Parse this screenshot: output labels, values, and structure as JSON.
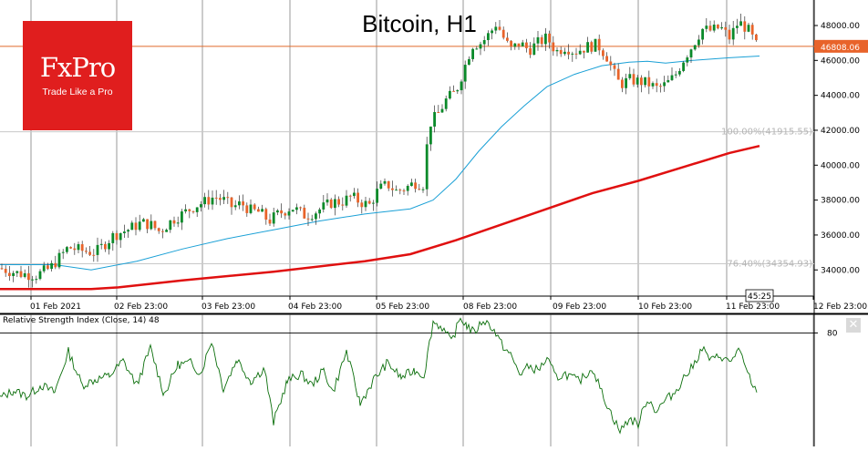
{
  "logo": {
    "brand": "FxPro",
    "tagline": "Trade Like a Pro"
  },
  "chart_data": [
    {
      "type": "candlestick",
      "title": "Bitcoin, H1",
      "current_price_label": "46808.06",
      "time_remaining_label": "45:25",
      "y_ticks": [
        "48000.00",
        "46000.00",
        "44000.00",
        "42000.00",
        "40000.00",
        "38000.00",
        "36000.00",
        "34000.00"
      ],
      "ylim": [
        32500,
        49200
      ],
      "x_labels": [
        "01 Feb 2021",
        "02 Feb 23:00",
        "03 Feb 23:00",
        "04 Feb 23:00",
        "05 Feb 23:00",
        "08 Feb 23:00",
        "09 Feb 23:00",
        "10 Feb 23:00",
        "11 Feb 23:00",
        "12 Feb 23:00"
      ],
      "fib_levels": [
        {
          "label": "100.00%(41915.55)",
          "price": 41915.55
        },
        {
          "label": "76.40%(34354.93)",
          "price": 34354.93
        }
      ],
      "current_price": 46808.06,
      "close_path": [
        [
          0,
          34100
        ],
        [
          20,
          33800
        ],
        [
          40,
          33700
        ],
        [
          55,
          34100
        ],
        [
          65,
          34700
        ],
        [
          75,
          35300
        ],
        [
          90,
          35100
        ],
        [
          105,
          35000
        ],
        [
          115,
          35500
        ],
        [
          125,
          36000
        ],
        [
          140,
          36300
        ],
        [
          155,
          36700
        ],
        [
          165,
          36600
        ],
        [
          175,
          36200
        ],
        [
          190,
          36900
        ],
        [
          200,
          37200
        ],
        [
          215,
          37700
        ],
        [
          225,
          37900
        ],
        [
          235,
          38200
        ],
        [
          245,
          38000
        ],
        [
          255,
          37600
        ],
        [
          265,
          37800
        ],
        [
          275,
          37400
        ],
        [
          285,
          37300
        ],
        [
          295,
          36800
        ],
        [
          305,
          37200
        ],
        [
          320,
          37600
        ],
        [
          335,
          37100
        ],
        [
          345,
          37300
        ],
        [
          355,
          37600
        ],
        [
          365,
          37900
        ],
        [
          375,
          37900
        ],
        [
          385,
          38200
        ],
        [
          395,
          37900
        ],
        [
          405,
          37700
        ],
        [
          415,
          38600
        ],
        [
          425,
          38900
        ],
        [
          435,
          38500
        ],
        [
          445,
          38700
        ],
        [
          455,
          39000
        ],
        [
          465,
          38900
        ],
        [
          470,
          42300
        ],
        [
          480,
          42900
        ],
        [
          490,
          43800
        ],
        [
          500,
          44200
        ],
        [
          510,
          45700
        ],
        [
          518,
          46900
        ],
        [
          528,
          47000
        ],
        [
          538,
          47600
        ],
        [
          545,
          48200
        ],
        [
          550,
          47500
        ],
        [
          560,
          46600
        ],
        [
          570,
          47000
        ],
        [
          580,
          46600
        ],
        [
          590,
          47000
        ],
        [
          600,
          47300
        ],
        [
          610,
          46500
        ],
        [
          620,
          46800
        ],
        [
          630,
          46500
        ],
        [
          645,
          46800
        ],
        [
          655,
          46900
        ],
        [
          665,
          46300
        ],
        [
          672,
          45400
        ],
        [
          680,
          44600
        ],
        [
          690,
          44900
        ],
        [
          700,
          44800
        ],
        [
          710,
          44700
        ],
        [
          720,
          44400
        ],
        [
          730,
          44600
        ],
        [
          740,
          45100
        ],
        [
          750,
          46100
        ],
        [
          760,
          46900
        ],
        [
          770,
          47800
        ],
        [
          780,
          47700
        ],
        [
          790,
          47900
        ],
        [
          800,
          47300
        ],
        [
          810,
          48200
        ],
        [
          820,
          47800
        ],
        [
          830,
          46808
        ]
      ],
      "series": [
        {
          "name": "MA fast",
          "color": "#1aa0d6",
          "points": [
            [
              0,
              34300
            ],
            [
              60,
              34300
            ],
            [
              100,
              34000
            ],
            [
              150,
              34500
            ],
            [
              200,
              35200
            ],
            [
              250,
              35800
            ],
            [
              300,
              36300
            ],
            [
              350,
              36800
            ],
            [
              400,
              37200
            ],
            [
              450,
              37500
            ],
            [
              475,
              38000
            ],
            [
              500,
              39200
            ],
            [
              525,
              40800
            ],
            [
              550,
              42200
            ],
            [
              575,
              43400
            ],
            [
              600,
              44500
            ],
            [
              630,
              45200
            ],
            [
              660,
              45700
            ],
            [
              690,
              45900
            ],
            [
              710,
              45950
            ],
            [
              730,
              45850
            ],
            [
              760,
              46000
            ],
            [
              800,
              46150
            ],
            [
              833,
              46250
            ]
          ]
        },
        {
          "name": "MA slow",
          "color": "#e01010",
          "points": [
            [
              0,
              32900
            ],
            [
              100,
              32900
            ],
            [
              130,
              33000
            ],
            [
              200,
              33400
            ],
            [
              300,
              33900
            ],
            [
              400,
              34500
            ],
            [
              450,
              34900
            ],
            [
              500,
              35700
            ],
            [
              550,
              36600
            ],
            [
              600,
              37500
            ],
            [
              650,
              38400
            ],
            [
              700,
              39100
            ],
            [
              750,
              39900
            ],
            [
              800,
              40700
            ],
            [
              833,
              41100
            ]
          ]
        }
      ]
    },
    {
      "type": "line",
      "title": "Relative Strength Index (Close, 14) 48",
      "level_label": "80",
      "level": 80,
      "ylim": [
        20,
        90
      ],
      "series": [
        {
          "name": "RSI",
          "color": "#0a6e0a",
          "points": [
            [
              0,
              45
            ],
            [
              15,
              49
            ],
            [
              30,
              46
            ],
            [
              45,
              52
            ],
            [
              60,
              48
            ],
            [
              75,
              70
            ],
            [
              90,
              52
            ],
            [
              105,
              55
            ],
            [
              120,
              57
            ],
            [
              135,
              65
            ],
            [
              150,
              52
            ],
            [
              165,
              72
            ],
            [
              180,
              47
            ],
            [
              195,
              63
            ],
            [
              210,
              64
            ],
            [
              220,
              58
            ],
            [
              232,
              76
            ],
            [
              245,
              50
            ],
            [
              260,
              66
            ],
            [
              275,
              54
            ],
            [
              290,
              61
            ],
            [
              300,
              32
            ],
            [
              315,
              54
            ],
            [
              330,
              58
            ],
            [
              342,
              52
            ],
            [
              355,
              60
            ],
            [
              365,
              48
            ],
            [
              380,
              70
            ],
            [
              395,
              42
            ],
            [
              410,
              55
            ],
            [
              425,
              64
            ],
            [
              440,
              56
            ],
            [
              455,
              60
            ],
            [
              465,
              57
            ],
            [
              475,
              86
            ],
            [
              485,
              83
            ],
            [
              495,
              75
            ],
            [
              505,
              88
            ],
            [
              512,
              84
            ],
            [
              520,
              80
            ],
            [
              530,
              87
            ],
            [
              540,
              83
            ],
            [
              550,
              74
            ],
            [
              560,
              68
            ],
            [
              570,
              58
            ],
            [
              580,
              62
            ],
            [
              590,
              60
            ],
            [
              600,
              66
            ],
            [
              610,
              56
            ],
            [
              620,
              58
            ],
            [
              635,
              54
            ],
            [
              650,
              61
            ],
            [
              660,
              48
            ],
            [
              670,
              37
            ],
            [
              680,
              27
            ],
            [
              690,
              34
            ],
            [
              700,
              31
            ],
            [
              710,
              45
            ],
            [
              720,
              38
            ],
            [
              730,
              44
            ],
            [
              740,
              48
            ],
            [
              750,
              56
            ],
            [
              760,
              62
            ],
            [
              770,
              72
            ],
            [
              780,
              65
            ],
            [
              790,
              68
            ],
            [
              800,
              64
            ],
            [
              810,
              71
            ],
            [
              820,
              58
            ],
            [
              830,
              48
            ]
          ]
        }
      ]
    }
  ]
}
